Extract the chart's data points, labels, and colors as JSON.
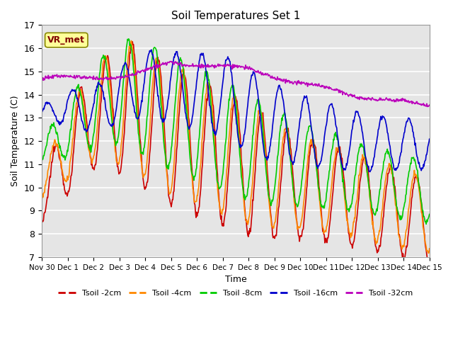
{
  "title": "Soil Temperatures Set 1",
  "xlabel": "Time",
  "ylabel": "Soil Temperature (C)",
  "ylim": [
    7.0,
    17.0
  ],
  "yticks": [
    7.0,
    8.0,
    9.0,
    10.0,
    11.0,
    12.0,
    13.0,
    14.0,
    15.0,
    16.0,
    17.0
  ],
  "colors": {
    "Tsoil -2cm": "#cc0000",
    "Tsoil -4cm": "#ff8800",
    "Tsoil -8cm": "#00cc00",
    "Tsoil -16cm": "#0000cc",
    "Tsoil -32cm": "#bb00bb"
  },
  "background_color": "#e5e5e5",
  "legend_label": "VR_met",
  "xtick_labels": [
    "Nov 30",
    "Dec 1",
    "Dec 2",
    "Dec 3",
    "Dec 4",
    "Dec 5",
    "Dec 6",
    "Dec 7",
    "Dec 8",
    "Dec 9",
    "Dec 10",
    "Dec 11",
    "Dec 12",
    "Dec 13",
    "Dec 14",
    "Dec 15"
  ],
  "n_days": 15,
  "points_per_day": 48
}
